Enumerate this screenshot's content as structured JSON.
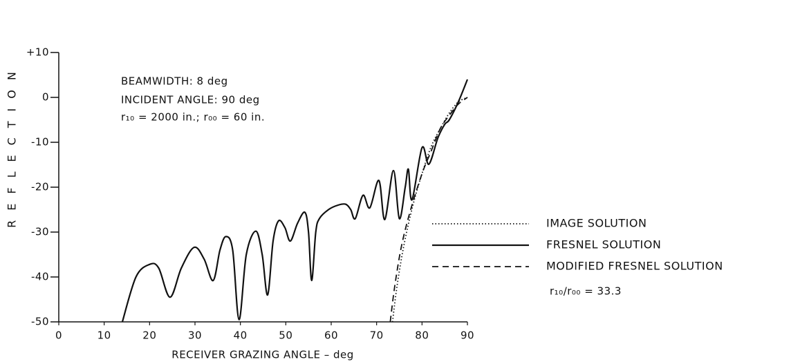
{
  "chart_data": {
    "type": "line",
    "ylabel": "REFLECTION",
    "xlabel": "RECEIVER GRAZING ANGLE – deg",
    "xlim": [
      0,
      90
    ],
    "xticks": [
      0,
      10,
      20,
      30,
      40,
      50,
      60,
      70,
      80,
      90
    ],
    "ylim": [
      -50,
      10
    ],
    "yticks": [
      {
        "value": 10,
        "label": "+10"
      },
      0,
      -10,
      -20,
      -30,
      -40,
      -50
    ],
    "annotations": [
      "BEAMWIDTH:  8 deg",
      "INCIDENT ANGLE:  90 deg",
      "r₁₀ = 2000 in.; r₀₀ = 60 in.",
      "r₁₀/r₀₀ = 33.3"
    ],
    "series": [
      {
        "name": "IMAGE SOLUTION",
        "color": "#111111",
        "style": "dotted",
        "x": [
          73.5,
          74.5,
          76,
          78,
          80,
          82,
          84,
          86,
          88,
          90
        ],
        "values": [
          -50,
          -42,
          -33,
          -24,
          -17,
          -11,
          -7,
          -3.5,
          -1,
          0
        ]
      },
      {
        "name": "FRESNEL SOLUTION",
        "color": "#111111",
        "style": "solid",
        "x": [
          14,
          17,
          20,
          22,
          24.5,
          27,
          29.8,
          32,
          34,
          35.5,
          36.8,
          38.3,
          39.7,
          41.3,
          43.4,
          44.8,
          46,
          47.2,
          48.4,
          49.8,
          51,
          52.6,
          54.2,
          55,
          55.7,
          56.6,
          57.4,
          59.4,
          61.5,
          63.2,
          64.3,
          65.3,
          67,
          68.5,
          70.5,
          71.8,
          73.7,
          75,
          76.3,
          77,
          77.8,
          80,
          81.5,
          83.5,
          85,
          86,
          88,
          90
        ],
        "values": [
          -50,
          -40,
          -37.2,
          -38,
          -44.5,
          -38,
          -33.4,
          -36,
          -40.8,
          -34,
          -31,
          -34,
          -49.5,
          -35,
          -29.8,
          -35,
          -44,
          -32,
          -27.5,
          -29,
          -32,
          -28,
          -25.6,
          -30,
          -40.8,
          -30,
          -27,
          -25,
          -24,
          -23.8,
          -25,
          -27,
          -21.8,
          -24.6,
          -18.5,
          -27.2,
          -16.3,
          -27,
          -20,
          -16,
          -22.8,
          -11.2,
          -14.9,
          -9,
          -6,
          -5,
          -1,
          4
        ]
      },
      {
        "name": "MODIFIED FRESNEL SOLUTION",
        "color": "#111111",
        "style": "dashed",
        "x": [
          73,
          74,
          75.5,
          77.5,
          80,
          82,
          84,
          86,
          88,
          90
        ],
        "values": [
          -50,
          -42,
          -33,
          -25,
          -17,
          -12,
          -7,
          -4,
          -1.5,
          0
        ]
      }
    ]
  }
}
